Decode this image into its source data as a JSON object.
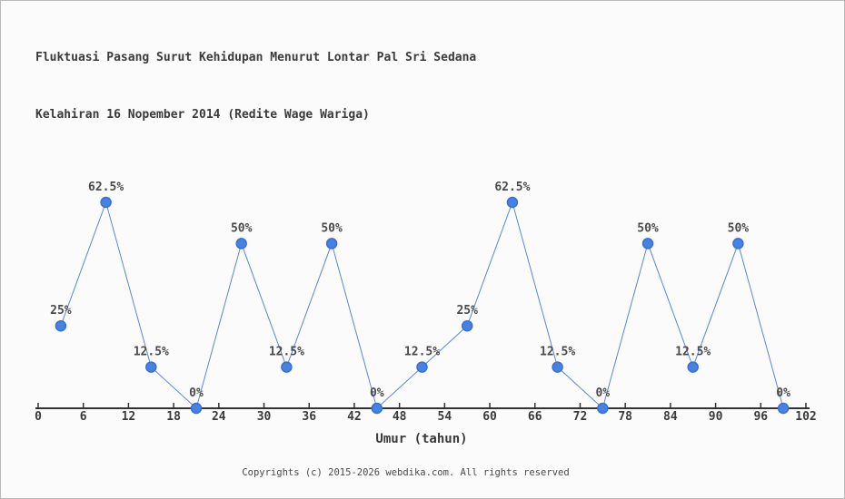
{
  "chart_data": {
    "type": "line",
    "title_lines": [
      "Fluktuasi Pasang Surut Kehidupan Menurut Lontar Pal Sri Sedana",
      "Kelahiran 16 Nopember 2014 (Redite Wage Wariga)"
    ],
    "x": [
      3,
      9,
      15,
      21,
      27,
      33,
      39,
      45,
      51,
      57,
      63,
      69,
      75,
      81,
      87,
      93,
      99
    ],
    "values": [
      25,
      62.5,
      12.5,
      0,
      50,
      12.5,
      50,
      0,
      12.5,
      25,
      62.5,
      12.5,
      0,
      50,
      12.5,
      50,
      0
    ],
    "point_labels": [
      "25%",
      "62.5%",
      "12.5%",
      "0%",
      "50%",
      "12.5%",
      "50%",
      "0%",
      "12.5%",
      "25%",
      "62.5%",
      "12.5%",
      "0%",
      "50%",
      "12.5%",
      "50%",
      "0%"
    ],
    "xlabel": "Umur (tahun)",
    "xticks": [
      0,
      6,
      12,
      18,
      24,
      30,
      36,
      42,
      48,
      54,
      60,
      66,
      72,
      78,
      84,
      90,
      96,
      102
    ],
    "xlim": [
      0,
      102
    ],
    "ylim": [
      0,
      62.5
    ],
    "grid": false,
    "legend": "none",
    "colors": {
      "line": "#5b87d5",
      "marker_fill": "#4681e4",
      "marker_stroke": "#3a6fd2",
      "axis": "#333333",
      "tick_text": "#3a3a3a",
      "point_label_text": "#4a4a4a",
      "title_text": "#3a3a3a",
      "background": "#fbfbfb"
    }
  },
  "footer": {
    "copyright": "Copyrights (c) 2015-2026 webdika.com. All rights reserved"
  }
}
